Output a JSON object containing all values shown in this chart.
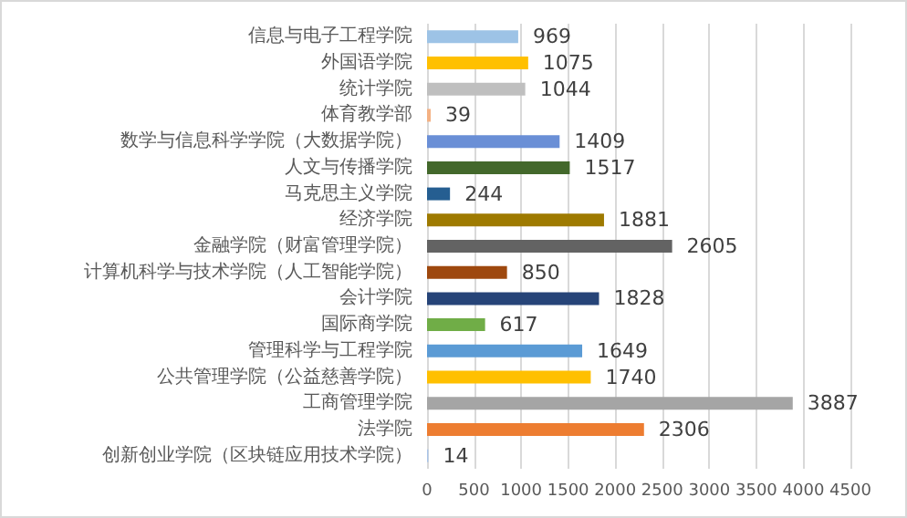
{
  "chart_data": {
    "type": "bar",
    "orientation": "horizontal",
    "categories": [
      "信息与电子工程学院",
      "外国语学院",
      "统计学院",
      "体育教学部",
      "数学与信息科学学院（大数据学院）",
      "人文与传播学院",
      "马克思主义学院",
      "经济学院",
      "金融学院（财富管理学院）",
      "计算机科学与技术学院（人工智能学院）",
      "会计学院",
      "国际商学院",
      "管理科学与工程学院",
      "公共管理学院（公益慈善学院）",
      "工商管理学院",
      "法学院",
      "创新创业学院（区块链应用技术学院）"
    ],
    "values": [
      969,
      1075,
      1044,
      39,
      1409,
      1517,
      244,
      1881,
      2605,
      850,
      1828,
      617,
      1649,
      1740,
      3887,
      2306,
      14
    ],
    "colors": [
      "#9dc3e6",
      "#ffc000",
      "#bfbfbf",
      "#f4b183",
      "#6a8fd6",
      "#43682b",
      "#255e91",
      "#9e7a00",
      "#636363",
      "#9e480e",
      "#264478",
      "#70ad47",
      "#5b9bd5",
      "#ffc000",
      "#a5a5a5",
      "#ed7d31",
      "#a9c4e8"
    ],
    "xlim": [
      0,
      4500
    ],
    "xticks": [
      0,
      500,
      1000,
      1500,
      2000,
      2500,
      3000,
      3500,
      4000,
      4500
    ],
    "grid": "x",
    "data_labels": true
  }
}
